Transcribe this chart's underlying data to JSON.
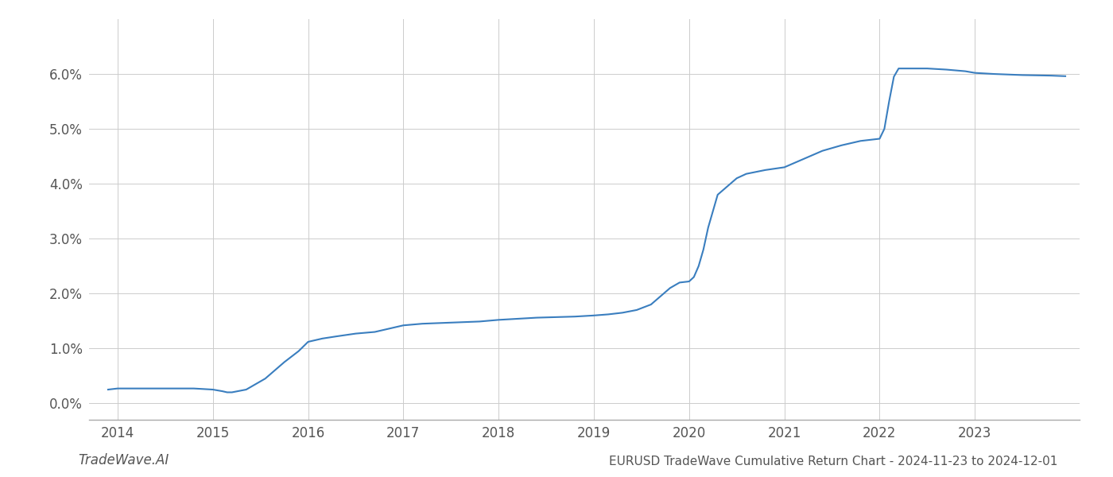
{
  "line_color": "#3a7ebf",
  "line_width": 1.5,
  "background_color": "#ffffff",
  "grid_color": "#cccccc",
  "title": "EURUSD TradeWave Cumulative Return Chart - 2024-11-23 to 2024-12-01",
  "watermark": "TradeWave.AI",
  "xlim": [
    2013.7,
    2024.1
  ],
  "ylim": [
    -0.3,
    7.0
  ],
  "yticks": [
    0.0,
    1.0,
    2.0,
    3.0,
    4.0,
    5.0,
    6.0
  ],
  "xticks": [
    2014,
    2015,
    2016,
    2017,
    2018,
    2019,
    2020,
    2021,
    2022,
    2023
  ],
  "tick_label_fontsize": 12,
  "title_fontsize": 11,
  "watermark_fontsize": 12,
  "x_data": [
    2013.9,
    2014.0,
    2014.2,
    2014.4,
    2014.6,
    2014.8,
    2015.0,
    2015.1,
    2015.15,
    2015.2,
    2015.35,
    2015.55,
    2015.75,
    2015.9,
    2016.0,
    2016.15,
    2016.3,
    2016.5,
    2016.7,
    2017.0,
    2017.2,
    2017.5,
    2017.8,
    2018.0,
    2018.2,
    2018.4,
    2018.6,
    2018.8,
    2019.0,
    2019.15,
    2019.3,
    2019.45,
    2019.6,
    2019.7,
    2019.8,
    2019.9,
    2020.0,
    2020.05,
    2020.1,
    2020.15,
    2020.2,
    2020.3,
    2020.5,
    2020.6,
    2020.8,
    2021.0,
    2021.2,
    2021.4,
    2021.6,
    2021.8,
    2022.0,
    2022.05,
    2022.1,
    2022.15,
    2022.2,
    2022.3,
    2022.5,
    2022.7,
    2022.9,
    2023.0,
    2023.2,
    2023.5,
    2023.8,
    2023.95
  ],
  "y_data": [
    0.25,
    0.27,
    0.27,
    0.27,
    0.27,
    0.27,
    0.25,
    0.22,
    0.2,
    0.2,
    0.25,
    0.45,
    0.75,
    0.95,
    1.12,
    1.18,
    1.22,
    1.27,
    1.3,
    1.42,
    1.45,
    1.47,
    1.49,
    1.52,
    1.54,
    1.56,
    1.57,
    1.58,
    1.6,
    1.62,
    1.65,
    1.7,
    1.8,
    1.95,
    2.1,
    2.2,
    2.22,
    2.3,
    2.5,
    2.8,
    3.2,
    3.8,
    4.1,
    4.18,
    4.25,
    4.3,
    4.45,
    4.6,
    4.7,
    4.78,
    4.82,
    5.0,
    5.5,
    5.95,
    6.1,
    6.1,
    6.1,
    6.08,
    6.05,
    6.02,
    6.0,
    5.98,
    5.97,
    5.96
  ]
}
